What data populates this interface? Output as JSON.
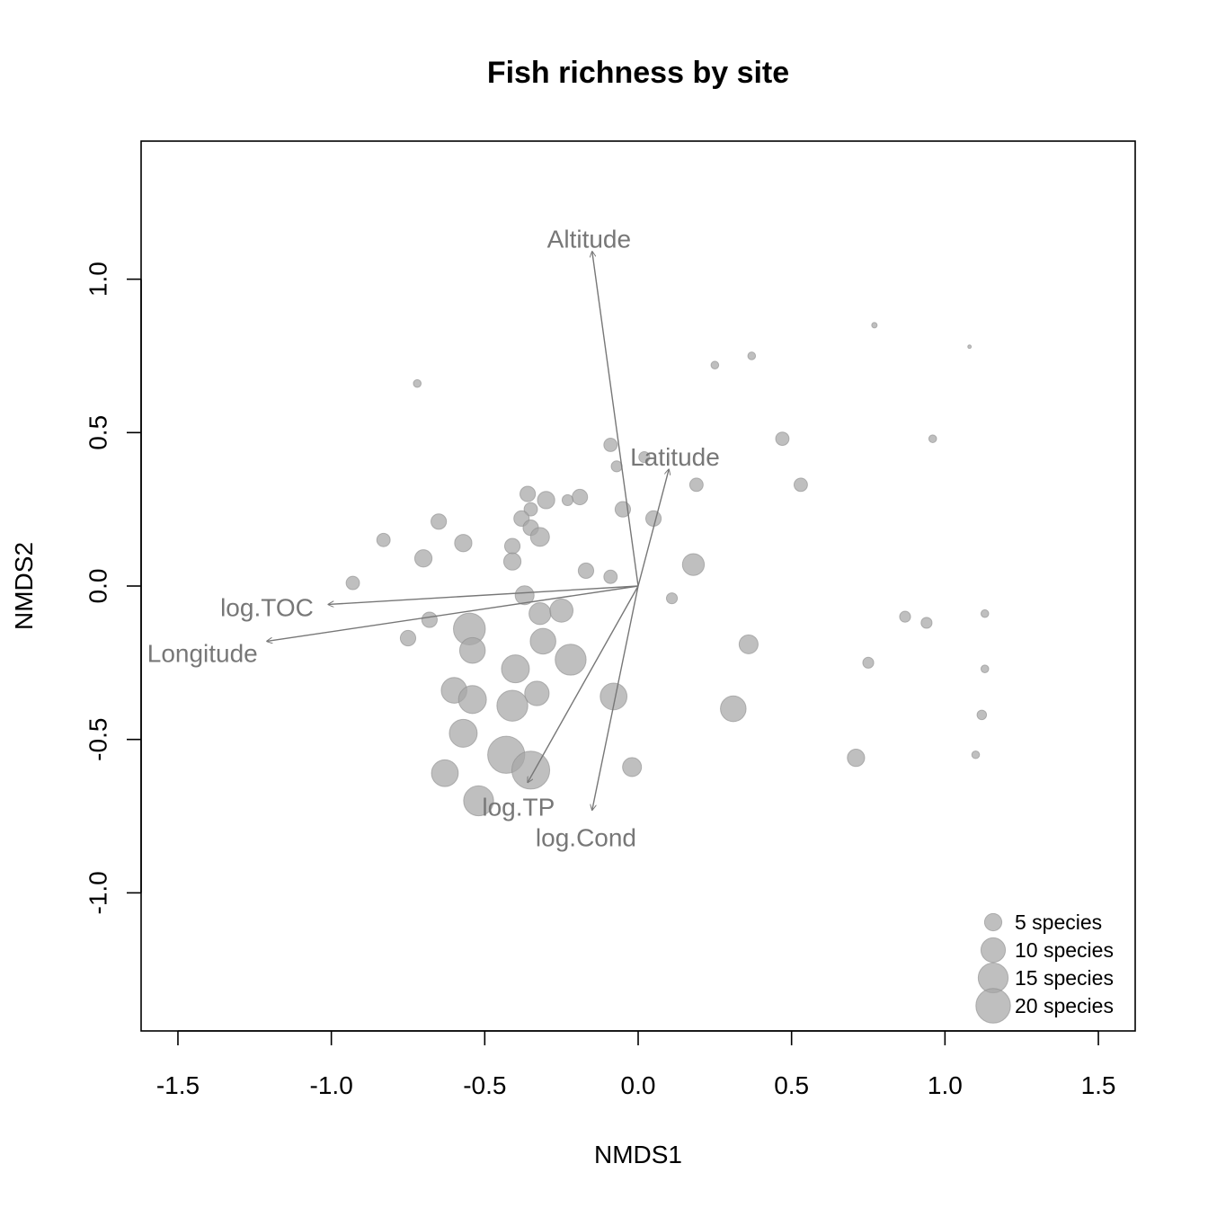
{
  "chart_data": {
    "type": "scatter",
    "title": "Fish richness by site",
    "xlabel": "NMDS1",
    "ylabel": "NMDS2",
    "xlim": [
      -1.62,
      1.62
    ],
    "ylim": [
      -1.45,
      1.45
    ],
    "xticks": [
      -1.5,
      -1.0,
      -0.5,
      0.0,
      0.5,
      1.0,
      1.5
    ],
    "xtick_labels": [
      "-1.5",
      "-1.0",
      "-0.5",
      "0.0",
      "0.5",
      "1.0",
      "1.5"
    ],
    "yticks": [
      -1.0,
      -0.5,
      0.0,
      0.5,
      1.0
    ],
    "ytick_labels": [
      "-1.0",
      "-0.5",
      "0.0",
      "0.5",
      "1.0"
    ],
    "grid": false,
    "point_color": "#a6a6a6",
    "point_stroke": "#8c8c8c",
    "arrow_color": "#777777",
    "points": [
      {
        "x": -0.72,
        "y": 0.66,
        "species": 1
      },
      {
        "x": 0.25,
        "y": 0.72,
        "species": 1
      },
      {
        "x": 0.37,
        "y": 0.75,
        "species": 1
      },
      {
        "x": 0.77,
        "y": 0.85,
        "species": 0.5
      },
      {
        "x": 1.08,
        "y": 0.78,
        "species": 0.2
      },
      {
        "x": 0.96,
        "y": 0.48,
        "species": 1
      },
      {
        "x": 0.47,
        "y": 0.48,
        "species": 3
      },
      {
        "x": 0.53,
        "y": 0.33,
        "species": 3
      },
      {
        "x": 0.19,
        "y": 0.33,
        "species": 3
      },
      {
        "x": 0.02,
        "y": 0.42,
        "species": 2
      },
      {
        "x": -0.09,
        "y": 0.46,
        "species": 3
      },
      {
        "x": -0.07,
        "y": 0.39,
        "species": 2
      },
      {
        "x": -0.05,
        "y": 0.25,
        "species": 4
      },
      {
        "x": 0.05,
        "y": 0.22,
        "species": 4
      },
      {
        "x": -0.19,
        "y": 0.29,
        "species": 4
      },
      {
        "x": -0.23,
        "y": 0.28,
        "species": 2
      },
      {
        "x": -0.3,
        "y": 0.28,
        "species": 5
      },
      {
        "x": -0.36,
        "y": 0.3,
        "species": 4
      },
      {
        "x": -0.35,
        "y": 0.25,
        "species": 3
      },
      {
        "x": -0.38,
        "y": 0.22,
        "species": 4
      },
      {
        "x": -0.35,
        "y": 0.19,
        "species": 4
      },
      {
        "x": -0.32,
        "y": 0.16,
        "species": 6
      },
      {
        "x": -0.41,
        "y": 0.13,
        "species": 4
      },
      {
        "x": -0.41,
        "y": 0.08,
        "species": 5
      },
      {
        "x": -0.65,
        "y": 0.21,
        "species": 4
      },
      {
        "x": -0.57,
        "y": 0.14,
        "species": 5
      },
      {
        "x": -0.83,
        "y": 0.15,
        "species": 3
      },
      {
        "x": -0.7,
        "y": 0.09,
        "species": 5
      },
      {
        "x": -0.93,
        "y": 0.01,
        "species": 3
      },
      {
        "x": -0.17,
        "y": 0.05,
        "species": 4
      },
      {
        "x": -0.09,
        "y": 0.03,
        "species": 3
      },
      {
        "x": 0.18,
        "y": 0.07,
        "species": 8
      },
      {
        "x": 0.11,
        "y": -0.04,
        "species": 2
      },
      {
        "x": -0.37,
        "y": -0.03,
        "species": 6
      },
      {
        "x": -0.32,
        "y": -0.09,
        "species": 8
      },
      {
        "x": -0.25,
        "y": -0.08,
        "species": 9
      },
      {
        "x": -0.68,
        "y": -0.11,
        "species": 4
      },
      {
        "x": -0.75,
        "y": -0.17,
        "species": 4
      },
      {
        "x": -0.55,
        "y": -0.14,
        "species": 17
      },
      {
        "x": -0.54,
        "y": -0.21,
        "species": 11
      },
      {
        "x": -0.31,
        "y": -0.18,
        "species": 11
      },
      {
        "x": -0.22,
        "y": -0.24,
        "species": 16
      },
      {
        "x": -0.4,
        "y": -0.27,
        "species": 13
      },
      {
        "x": -0.6,
        "y": -0.34,
        "species": 11
      },
      {
        "x": -0.54,
        "y": -0.37,
        "species": 13
      },
      {
        "x": -0.41,
        "y": -0.39,
        "species": 16
      },
      {
        "x": -0.33,
        "y": -0.35,
        "species": 10
      },
      {
        "x": -0.08,
        "y": -0.36,
        "species": 12
      },
      {
        "x": -0.57,
        "y": -0.48,
        "species": 13
      },
      {
        "x": -0.43,
        "y": -0.55,
        "species": 23
      },
      {
        "x": -0.35,
        "y": -0.6,
        "species": 24
      },
      {
        "x": -0.63,
        "y": -0.61,
        "species": 12
      },
      {
        "x": -0.52,
        "y": -0.7,
        "species": 15
      },
      {
        "x": -0.02,
        "y": -0.59,
        "species": 6
      },
      {
        "x": 0.36,
        "y": -0.19,
        "species": 6
      },
      {
        "x": 0.31,
        "y": -0.4,
        "species": 11
      },
      {
        "x": 0.71,
        "y": -0.56,
        "species": 5
      },
      {
        "x": 0.75,
        "y": -0.25,
        "species": 2
      },
      {
        "x": 0.87,
        "y": -0.1,
        "species": 2
      },
      {
        "x": 0.94,
        "y": -0.12,
        "species": 2
      },
      {
        "x": 1.13,
        "y": -0.09,
        "species": 1
      },
      {
        "x": 1.13,
        "y": -0.27,
        "species": 1
      },
      {
        "x": 1.12,
        "y": -0.42,
        "species": 1.5
      },
      {
        "x": 1.1,
        "y": -0.55,
        "species": 1
      }
    ],
    "vectors": [
      {
        "label": "Altitude",
        "x": -0.15,
        "y": 1.09,
        "lx": -0.16,
        "ly": 1.13
      },
      {
        "label": "Latitude",
        "x": 0.1,
        "y": 0.38,
        "lx": 0.12,
        "ly": 0.42
      },
      {
        "label": "log.TOC",
        "x": -1.01,
        "y": -0.06,
        "lx": -1.21,
        "ly": -0.07
      },
      {
        "label": "Longitude",
        "x": -1.21,
        "y": -0.18,
        "lx": -1.42,
        "ly": -0.22
      },
      {
        "label": "log.TP",
        "x": -0.36,
        "y": -0.64,
        "lx": -0.39,
        "ly": -0.72
      },
      {
        "label": "log.Cond",
        "x": -0.15,
        "y": -0.73,
        "lx": -0.17,
        "ly": -0.82
      }
    ],
    "legend": {
      "position": "bottom-right",
      "entries": [
        {
          "label": "5 species",
          "species": 5
        },
        {
          "label": "10 species",
          "species": 10
        },
        {
          "label": "15 species",
          "species": 15
        },
        {
          "label": "20 species",
          "species": 20
        }
      ]
    }
  }
}
